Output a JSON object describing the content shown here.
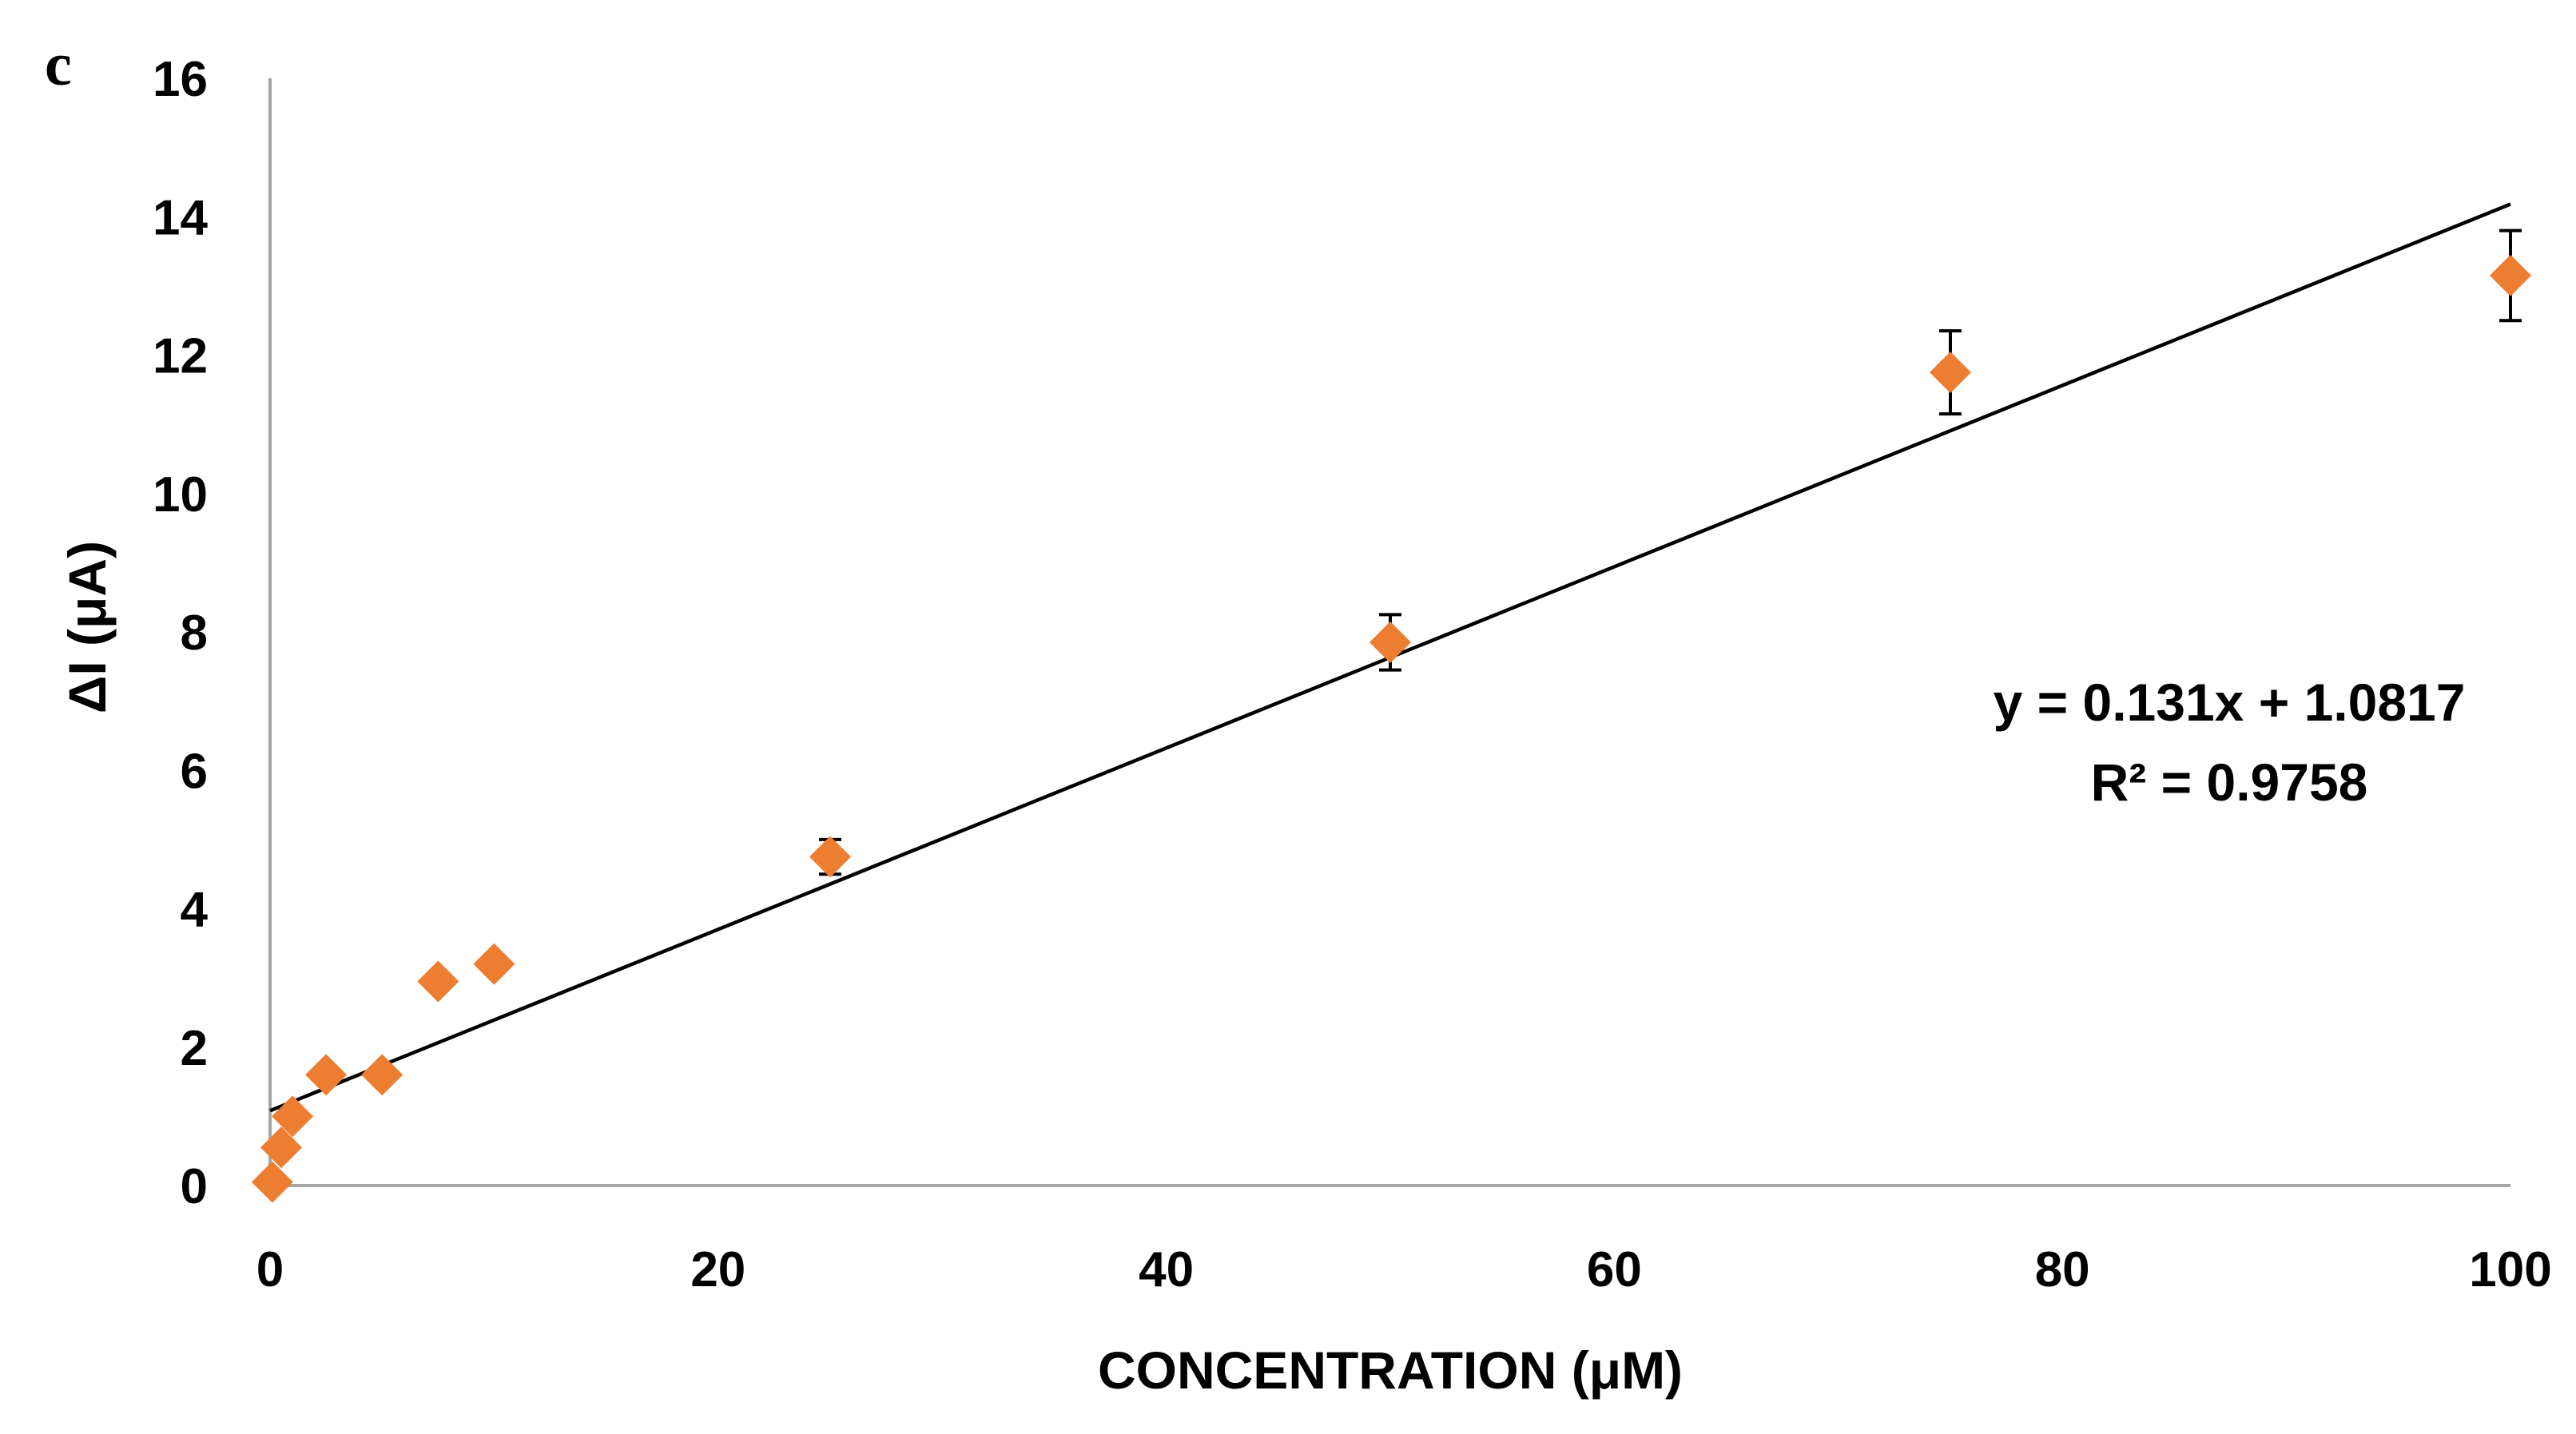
{
  "panel_label": "c",
  "chart_data": {
    "type": "scatter",
    "title": "",
    "xlabel": "CONCENTRATION (μM)",
    "ylabel": "ΔI (μA)",
    "xlim": [
      0,
      100
    ],
    "ylim": [
      0,
      16
    ],
    "x_ticks": [
      0,
      20,
      40,
      60,
      80,
      100
    ],
    "y_ticks": [
      0,
      2,
      4,
      6,
      8,
      10,
      12,
      14,
      16
    ],
    "grid": false,
    "marker_color": "#ED7D31",
    "line_color": "#000000",
    "series": [
      {
        "name": "ΔI",
        "x": [
          0.1,
          0.5,
          1,
          2.5,
          5,
          7.5,
          10,
          25,
          50,
          75,
          100
        ],
        "y": [
          0.05,
          0.55,
          1.0,
          1.6,
          1.6,
          2.95,
          3.2,
          4.75,
          7.85,
          11.75,
          13.15
        ],
        "error": [
          0.05,
          0.05,
          0.08,
          0.1,
          0.08,
          0.1,
          0.12,
          0.25,
          0.4,
          0.6,
          0.65
        ]
      }
    ],
    "trendline": {
      "slope": 0.131,
      "intercept": 1.0817,
      "x_range": [
        0,
        100
      ]
    },
    "annotations": {
      "equation": "y = 0.131x + 1.0817",
      "r_squared": "R² = 0.9758"
    }
  }
}
